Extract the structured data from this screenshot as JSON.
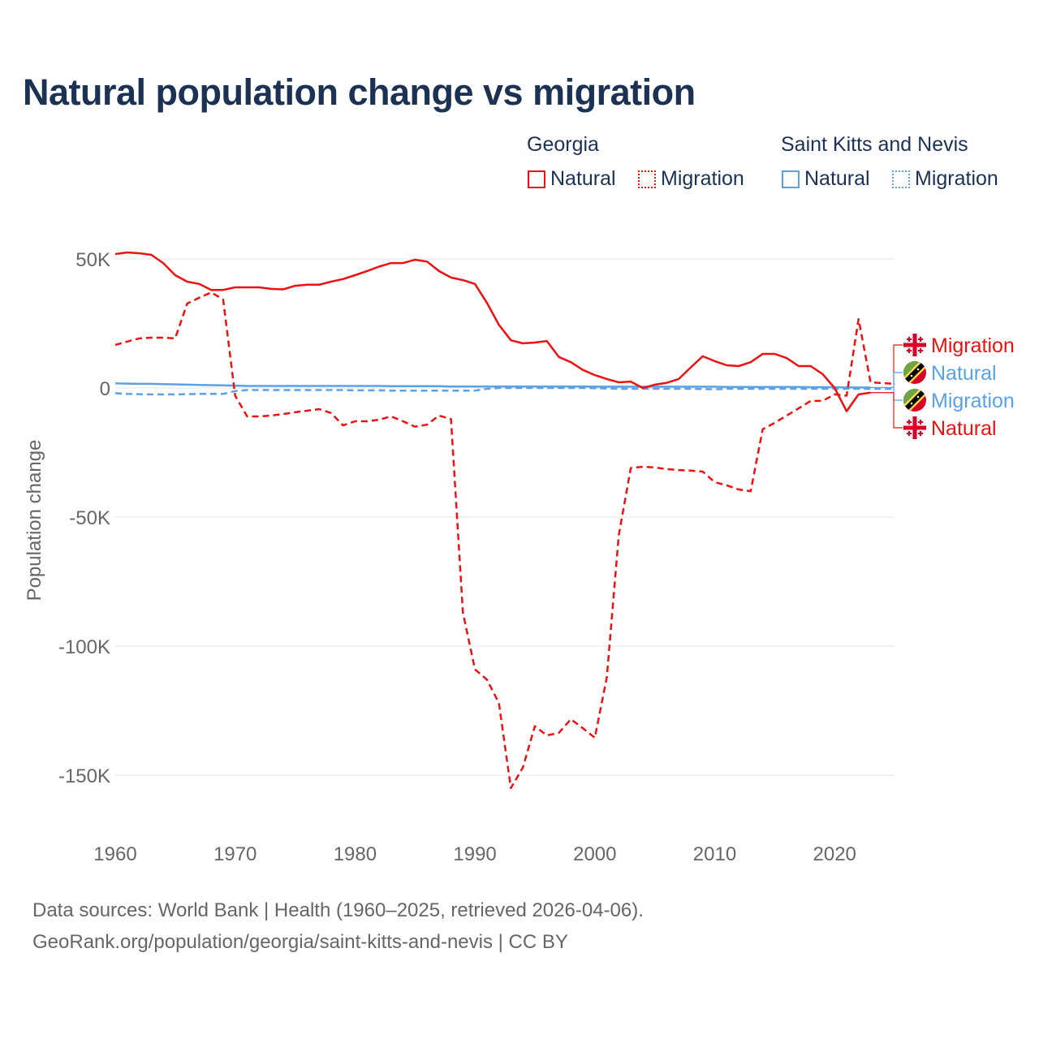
{
  "title": "Natural population change vs migration",
  "legend": {
    "groups": [
      {
        "name": "Georgia",
        "items": [
          {
            "label": "Natural",
            "style": "solid"
          },
          {
            "label": "Migration",
            "style": "dotted"
          }
        ],
        "color": "#ee1111"
      },
      {
        "name": "Saint Kitts and Nevis",
        "items": [
          {
            "label": "Natural",
            "style": "solid"
          },
          {
            "label": "Migration",
            "style": "dotted"
          }
        ],
        "color": "#5aa2e8"
      }
    ]
  },
  "end_labels": [
    {
      "label": "Migration",
      "country": "Georgia",
      "flag": "georgia-flag",
      "color": "#ee1111"
    },
    {
      "label": "Natural",
      "country": "Saint Kitts and Nevis",
      "flag": "saint-kitts-flag",
      "color": "#5aa2e8"
    },
    {
      "label": "Migration",
      "country": "Saint Kitts and Nevis",
      "flag": "saint-kitts-flag",
      "color": "#5aa2e8"
    },
    {
      "label": "Natural",
      "country": "Georgia",
      "flag": "georgia-flag",
      "color": "#ee1111"
    }
  ],
  "footer": {
    "line1": "Data sources: World Bank | Health (1960–2025, retrieved 2026-04-06).",
    "line2": "GeoRank.org/population/georgia/saint-kitts-and-nevis | CC BY"
  },
  "chart_data": {
    "type": "line",
    "title": "Natural population change vs migration",
    "xlabel": "",
    "ylabel": "Population change",
    "xlim": [
      1960,
      2025
    ],
    "ylim": [
      -165000,
      55000
    ],
    "x_ticks": [
      1960,
      1970,
      1980,
      1990,
      2000,
      2010,
      2020
    ],
    "x_tick_labels": [
      "1960",
      "1970",
      "1980",
      "1990",
      "2000",
      "2010",
      "2020"
    ],
    "y_ticks": [
      50000,
      0,
      -50000,
      -100000,
      -150000
    ],
    "y_tick_labels": [
      "50K",
      "0",
      "-50K",
      "-100K",
      "-150K"
    ],
    "grid": true,
    "legend_position": "top-right",
    "series": [
      {
        "name": "Georgia Natural",
        "color": "#ee1111",
        "dash": false,
        "start": 1960,
        "values_k": [
          51.9,
          52.5,
          52.2,
          51.6,
          48.4,
          43.7,
          41.2,
          40.3,
          38,
          38,
          39,
          39,
          39,
          38.4,
          38.2,
          39.6,
          40,
          40,
          41.2,
          42.2,
          43.7,
          45.3,
          47,
          48.4,
          48.4,
          49.7,
          49,
          45.3,
          42.8,
          41.8,
          40.3,
          33,
          24.5,
          18.5,
          17.3,
          17.6,
          18.2,
          12,
          10,
          7,
          5,
          3.5,
          2.2,
          2.5,
          0,
          1.3,
          2,
          3.5,
          8,
          12.3,
          10.4,
          8.8,
          8.5,
          10,
          13.2,
          13.2,
          11.6,
          8.5,
          8.5,
          5.4,
          0,
          -9,
          -2.5,
          -1.8
        ]
      },
      {
        "name": "Georgia Migration",
        "color": "#ee1111",
        "dash": true,
        "start": 1960,
        "values_k": [
          16.7,
          18,
          19.2,
          19.5,
          19.5,
          19.2,
          32.7,
          35,
          37,
          34.3,
          -3,
          -11,
          -11,
          -10.7,
          -10.1,
          -9.4,
          -8.8,
          -8.2,
          -9.7,
          -14.5,
          -12.9,
          -12.9,
          -12.3,
          -11,
          -12.9,
          -15,
          -14.2,
          -10.7,
          -12,
          -87,
          -109,
          -113,
          -122,
          -155,
          -147,
          -131,
          -134.6,
          -133.6,
          -128.3,
          -131.8,
          -135.5,
          -112,
          -57,
          -31,
          -30.5,
          -30.8,
          -31.4,
          -31.8,
          -32,
          -32.4,
          -36.5,
          -37.7,
          -39.3,
          -40,
          -16,
          -13.5,
          -10.7,
          -7.9,
          -5,
          -5,
          -2.5,
          -3,
          26.7,
          2.2,
          1.9,
          1.6
        ]
      },
      {
        "name": "Saint Kitts and Nevis Natural",
        "color": "#5aa2e8",
        "dash": false,
        "start": 1960,
        "values_k": [
          1.8,
          1.7,
          1.6,
          1.6,
          1.5,
          1.4,
          1.3,
          1.2,
          1.1,
          1,
          0.9,
          0.8,
          0.8,
          0.8,
          0.8,
          0.8,
          0.8,
          0.8,
          0.8,
          0.8,
          0.8,
          0.8,
          0.8,
          0.7,
          0.7,
          0.7,
          0.7,
          0.7,
          0.6,
          0.6,
          0.6,
          0.6,
          0.6,
          0.6,
          0.6,
          0.6,
          0.6,
          0.6,
          0.6,
          0.6,
          0.5,
          0.5,
          0.5,
          0.5,
          0.5,
          0.5,
          0.5,
          0.5,
          0.5,
          0.5,
          0.5,
          0.4,
          0.4,
          0.4,
          0.4,
          0.4,
          0.4,
          0.4,
          0.3,
          0.3,
          0.3,
          0.2,
          0.2,
          0.2
        ]
      },
      {
        "name": "Saint Kitts and Nevis Migration",
        "color": "#5aa2e8",
        "dash": true,
        "start": 1960,
        "values_k": [
          -2,
          -2.3,
          -2.4,
          -2.5,
          -2.5,
          -2.5,
          -2.4,
          -2.3,
          -2.3,
          -2.3,
          -1.2,
          -0.8,
          -0.8,
          -0.8,
          -0.8,
          -0.8,
          -0.8,
          -0.8,
          -0.8,
          -0.8,
          -0.9,
          -0.9,
          -0.9,
          -1,
          -1,
          -1,
          -1,
          -1,
          -1,
          -1,
          -1,
          -0.3,
          0,
          0,
          0,
          0,
          0,
          0,
          0,
          0,
          -0.1,
          -0.2,
          -0.3,
          -0.3,
          -0.3,
          -0.3,
          -0.3,
          -0.3,
          -0.3,
          -0.4,
          -0.5,
          -0.3,
          -0.3,
          -0.3,
          -0.3,
          -0.3,
          -0.3,
          -0.3,
          -0.3,
          -0.3,
          -0.3,
          -0.3,
          -0.3,
          -0.3,
          -0.3,
          -0.3
        ]
      }
    ]
  }
}
